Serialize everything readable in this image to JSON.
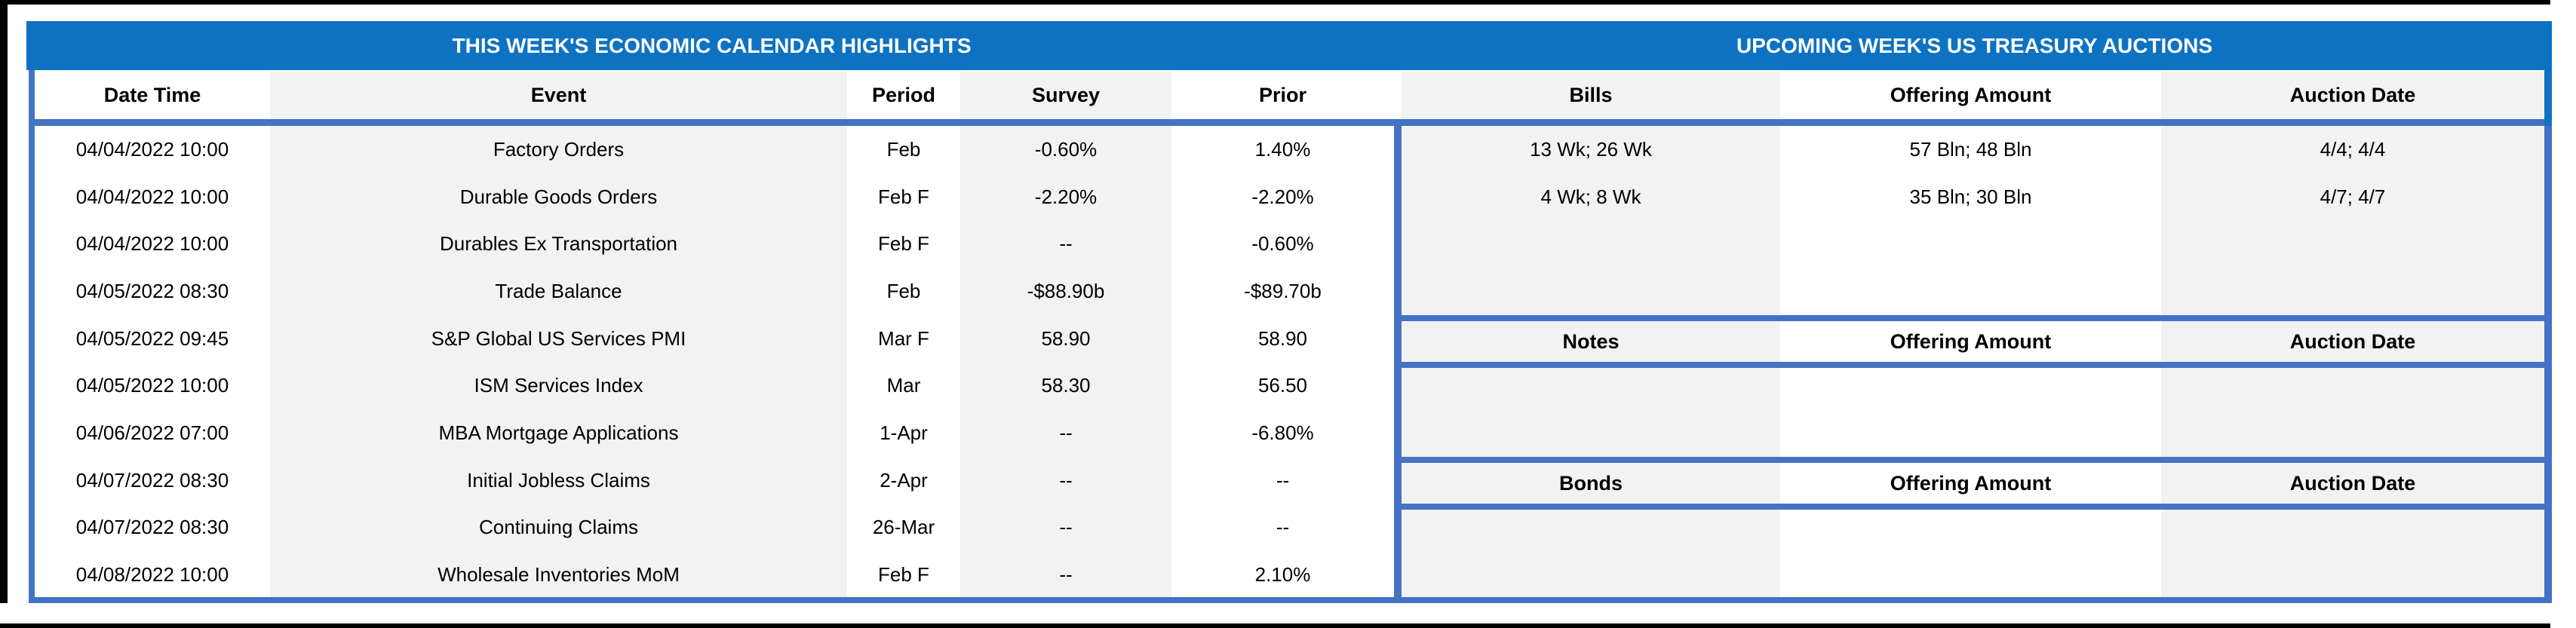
{
  "titles": {
    "left": "THIS WEEK'S ECONOMIC CALENDAR HIGHLIGHTS",
    "right": "UPCOMING WEEK'S US TREASURY AUCTIONS"
  },
  "calendar": {
    "columns": [
      "Date Time",
      "Event",
      "Period",
      "Survey",
      "Prior"
    ],
    "rows": [
      [
        "04/04/2022 10:00",
        "Factory Orders",
        "Feb",
        "-0.60%",
        "1.40%"
      ],
      [
        "04/04/2022 10:00",
        "Durable Goods Orders",
        "Feb F",
        "-2.20%",
        "-2.20%"
      ],
      [
        "04/04/2022 10:00",
        "Durables Ex Transportation",
        "Feb F",
        "--",
        "-0.60%"
      ],
      [
        "04/05/2022 08:30",
        "Trade Balance",
        "Feb",
        "-$88.90b",
        "-$89.70b"
      ],
      [
        "04/05/2022 09:45",
        "S&P Global US Services PMI",
        "Mar F",
        "58.90",
        "58.90"
      ],
      [
        "04/05/2022 10:00",
        "ISM Services Index",
        "Mar",
        "58.30",
        "56.50"
      ],
      [
        "04/06/2022 07:00",
        "MBA Mortgage Applications",
        "1-Apr",
        "--",
        "-6.80%"
      ],
      [
        "04/07/2022 08:30",
        "Initial Jobless Claims",
        "2-Apr",
        "--",
        "--"
      ],
      [
        "04/07/2022 08:30",
        "Continuing Claims",
        "26-Mar",
        "--",
        "--"
      ],
      [
        "04/08/2022 10:00",
        "Wholesale Inventories MoM",
        "Feb F",
        "--",
        "2.10%"
      ]
    ]
  },
  "auctions": {
    "bills": {
      "columns": [
        "Bills",
        "Offering Amount",
        "Auction Date"
      ],
      "rows": [
        [
          "13 Wk; 26 Wk",
          "57 Bln; 48 Bln",
          "4/4; 4/4"
        ],
        [
          "4 Wk; 8 Wk",
          "35 Bln; 30 Bln",
          "4/7; 4/7"
        ]
      ]
    },
    "notes": {
      "columns": [
        "Notes",
        "Offering Amount",
        "Auction Date"
      ],
      "rows": []
    },
    "bonds": {
      "columns": [
        "Bonds",
        "Offering Amount",
        "Auction Date"
      ],
      "rows": []
    }
  },
  "colors": {
    "title_bar_blue": "#0d72c2",
    "table_border_blue": "#4472c4",
    "stripe_gray": "#f2f2f2",
    "frame_black": "#000000"
  }
}
